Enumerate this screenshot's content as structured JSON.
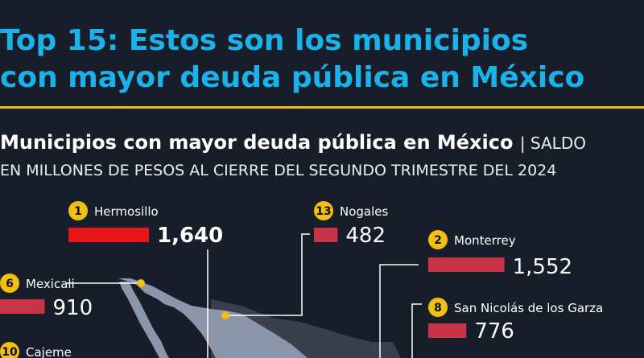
{
  "header": {
    "title_line1": "Top 15: Estos son los municipios",
    "title_line2": "con mayor deuda pública en México",
    "subtitle_main": "Municipios con mayor deuda pública en México",
    "subtitle_note": "| SALDO",
    "subtitle_line2": "EN MILLONES DE PESOS AL CIERRE DEL SEGUNDO TRIMESTRE DEL 2024"
  },
  "colors": {
    "background": "#181d2a",
    "title": "#1ab2ea",
    "rule": "#f2c011",
    "top_bar": "#e8161b",
    "bar": "#c83447",
    "badge": "#f2c011",
    "map_light": "#8c96aa",
    "map_dark": "#3a3f4c"
  },
  "chart_data": {
    "type": "bar",
    "title": "Municipios con mayor deuda pública en México",
    "subtitle": "SALDO EN MILLONES DE PESOS AL CIERRE DEL SEGUNDO TRIMESTRE DEL 2024",
    "series": [
      {
        "values": [
          {
            "rank": "1",
            "municipio": "Hermosillo",
            "valor": 1640,
            "label": "1,640"
          },
          {
            "rank": "13",
            "municipio": "Nogales",
            "valor": 482,
            "label": "482"
          },
          {
            "rank": "2",
            "municipio": "Monterrey",
            "valor": 1552,
            "label": "1,552"
          },
          {
            "rank": "6",
            "municipio": "Mexicali",
            "valor": 910,
            "label": "910"
          },
          {
            "rank": "8",
            "municipio": "San Nicolás de los Garza",
            "valor": 776,
            "label": "776"
          },
          {
            "rank": "10",
            "municipio": "Cajeme",
            "valor": null,
            "label": ""
          }
        ]
      }
    ]
  }
}
